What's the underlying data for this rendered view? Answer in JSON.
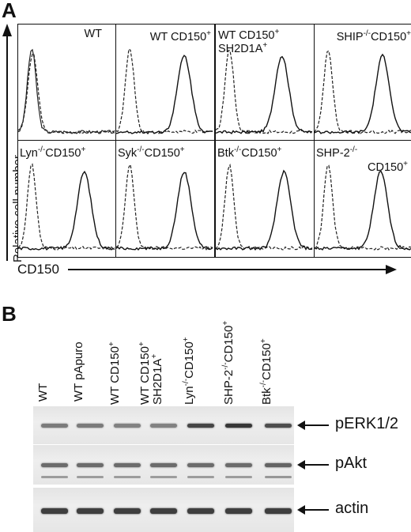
{
  "panel_a": {
    "letter": "A",
    "y_axis_label": "Relative cell number",
    "x_axis_label": "CD150",
    "histograms": [
      {
        "line1": "WT",
        "sup1": "",
        "line2": "",
        "sup2": "",
        "treated_peak": null
      },
      {
        "line1": "WT CD150",
        "sup1": "+",
        "line2": "",
        "sup2": "",
        "treated_peak": 0.7
      },
      {
        "line1": "WT CD150",
        "sup1": "+",
        "line2": "SH2D1A",
        "sup2": "+",
        "treated_peak": 0.68
      },
      {
        "line1": "SHIP",
        "sup1": "-/-",
        "line2": "CD150",
        "sup2": "+",
        "treated_peak": 0.7
      },
      {
        "line1": "Lyn",
        "sup1": "-/-",
        "line2": "CD150",
        "sup2": "+",
        "treated_peak": 0.68
      },
      {
        "line1": "Syk",
        "sup1": "-/-",
        "line2": "CD150",
        "sup2": "+",
        "treated_peak": 0.7
      },
      {
        "line1": "Btk",
        "sup1": "-/-",
        "line2": "CD150",
        "sup2": "+",
        "treated_peak": 0.7
      },
      {
        "line1": "SHP-2",
        "sup1": "-/-",
        "line2": "CD150",
        "sup2": "+",
        "treated_peak": 0.68
      }
    ]
  },
  "panel_b": {
    "letter": "B",
    "lanes": [
      {
        "line1": "WT",
        "sup1": "",
        "line2": "",
        "sup2": ""
      },
      {
        "line1": "WT pApuro",
        "sup1": "",
        "line2": "",
        "sup2": ""
      },
      {
        "line1": "WT CD150",
        "sup1": "+",
        "line2": "",
        "sup2": ""
      },
      {
        "line1": "WT CD150",
        "sup1": "+",
        "line2": "SH2D1A",
        "sup2": "+"
      },
      {
        "line1": "Lyn",
        "sup1": "-/-",
        "line2": "CD150",
        "sup2": "+"
      },
      {
        "line1": "SHP-2",
        "sup1": "-/-",
        "line2": "CD150",
        "sup2": "+"
      },
      {
        "line1": "Btk",
        "sup1": "-/-",
        "line2": "CD150",
        "sup2": "+"
      }
    ],
    "blots": [
      {
        "name": "pERK1/2",
        "intensities": [
          0.45,
          0.45,
          0.4,
          0.4,
          0.8,
          0.9,
          0.75
        ]
      },
      {
        "name": "pAkt",
        "intensities": [
          0.55,
          0.55,
          0.55,
          0.55,
          0.55,
          0.55,
          0.6
        ]
      },
      {
        "name": "actin",
        "intensities": [
          0.85,
          0.85,
          0.85,
          0.85,
          0.85,
          0.85,
          0.85
        ]
      }
    ]
  }
}
